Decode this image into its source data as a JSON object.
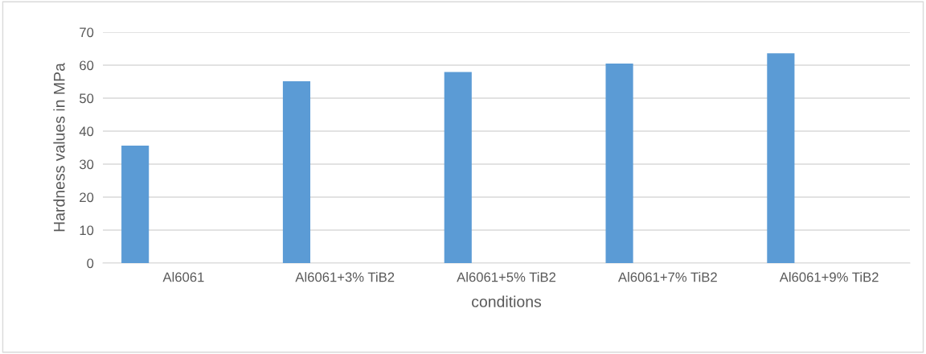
{
  "chart_data": {
    "type": "bar",
    "xlabel": "conditions",
    "ylabel": "Hardness values in MPa",
    "categories": [
      "Al6061",
      "Al6061+3% TiB2",
      "Al6061+5% TiB2",
      "Al6061+7% TiB2",
      "Al6061+9% TiB2"
    ],
    "values": [
      35.6,
      55.1,
      57.9,
      60.5,
      63.6
    ],
    "color": "#5b9bd5",
    "ylim": [
      0,
      70
    ],
    "yticks": [
      0,
      10,
      20,
      30,
      40,
      50,
      60,
      70
    ],
    "grid": "y",
    "legend": false
  }
}
